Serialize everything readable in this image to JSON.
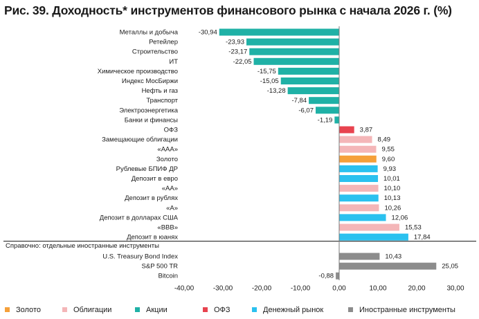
{
  "chart_data": {
    "type": "bar",
    "orientation": "horizontal",
    "title": "Рис. 39. Доходность* инструментов финансового рынка с начала 2026 г. (%)",
    "categories": [
      "Металлы и добыча",
      "Ретейлер",
      "Строительство",
      "ИТ",
      "Химическое производство",
      "Индекс МосБиржи",
      "Нефть и газ",
      "Транспорт",
      "Электроэнергетика",
      "Банки и финансы",
      "ОФЗ",
      "Замещающие облигации",
      "«ААА»",
      "Золото",
      "Рублевые БПИФ ДР",
      "Депозит в евро",
      "«АА»",
      "Депозит в рублях",
      "«А»",
      "Депозит в долларах США",
      "«ВВВ»",
      "Депозит в юанях",
      "U.S. Treasury Bond Index",
      "S&P 500 TR",
      "Bitcoin"
    ],
    "values": [
      -30.94,
      -23.93,
      -23.17,
      -22.05,
      -15.75,
      -15.05,
      -13.28,
      -7.84,
      -6.07,
      -1.19,
      3.87,
      8.49,
      9.55,
      9.6,
      9.93,
      10.01,
      10.1,
      10.13,
      10.26,
      12.06,
      15.53,
      17.84,
      10.43,
      25.05,
      -0.88
    ],
    "value_labels": [
      "-30,94",
      "-23,93",
      "-23,17",
      "-22,05",
      "-15,75",
      "-15,05",
      "-13,28",
      "-7,84",
      "-6,07",
      "-1,19",
      "3,87",
      "8,49",
      "9,55",
      "9,60",
      "9,93",
      "10,01",
      "10,10",
      "10,13",
      "10,26",
      "12,06",
      "15,53",
      "17,84",
      "10,43",
      "25,05",
      "-0,88"
    ],
    "groups": [
      "Акции",
      "Акции",
      "Акции",
      "Акции",
      "Акции",
      "Акции",
      "Акции",
      "Акции",
      "Акции",
      "Акции",
      "ОФЗ",
      "Облигации",
      "Облигации",
      "Золото",
      "Денежный рынок",
      "Денежный рынок",
      "Облигации",
      "Денежный рынок",
      "Облигации",
      "Денежный рынок",
      "Облигации",
      "Денежный рынок",
      "Иностранные инструменты",
      "Иностранные инструменты",
      "Иностранные инструменты"
    ],
    "section_label": "Справочно: отдельные иностранные инструменты",
    "x_ticks": [
      "-40,00",
      "-30,00",
      "-20,00",
      "-10,00",
      "0,00",
      "10,00",
      "20,00",
      "30,00"
    ],
    "x_tick_values": [
      -40,
      -30,
      -20,
      -10,
      0,
      10,
      20,
      30
    ],
    "xlim": [
      -40,
      30
    ],
    "grid": false,
    "legend_position": "bottom",
    "legend": [
      {
        "name": "Золото",
        "color": "#f5a03a"
      },
      {
        "name": "Облигации",
        "color": "#f4b6b8"
      },
      {
        "name": "Акции",
        "color": "#1fb1a6"
      },
      {
        "name": "ОФЗ",
        "color": "#e8434f"
      },
      {
        "name": "Денежный рынок",
        "color": "#2bc1ef"
      },
      {
        "name": "Иностранные инструменты",
        "color": "#8c8c8c"
      }
    ]
  }
}
